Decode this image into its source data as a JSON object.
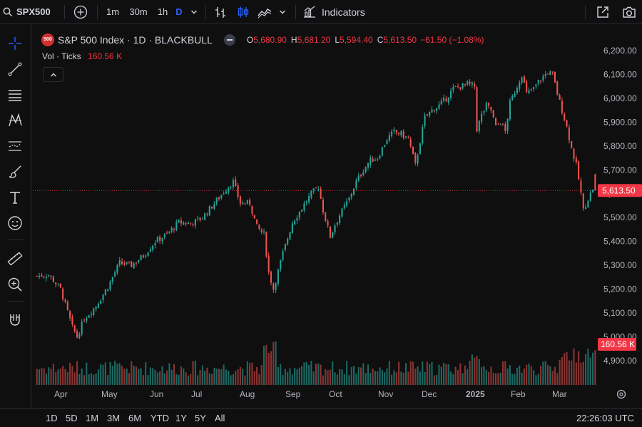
{
  "toolbar": {
    "symbol": "SPX500",
    "intervals": [
      "1m",
      "30m",
      "1h",
      "D"
    ],
    "indicators_label": "Indicators"
  },
  "legend": {
    "badge": "500",
    "title": "S&P 500 Index · 1D · BLACKBULL",
    "o_label": "O",
    "o_value": "5,680.90",
    "h_label": "H",
    "h_value": "5,681.20",
    "l_label": "L",
    "l_value": "5,594.40",
    "c_label": "C",
    "c_value": "5,613.50",
    "change": "−61.50 (−1.08%)",
    "vol_label": "Vol · Ticks",
    "vol_value": "160.56 K"
  },
  "price_axis": {
    "ticks": [
      "6,200.00",
      "6,100.00",
      "6,000.00",
      "5,900.00",
      "5,800.00",
      "5,700.00",
      "5,600.00",
      "5,500.00",
      "5,400.00",
      "5,300.00",
      "5,200.00",
      "5,100.00",
      "5,000.00",
      "4,900.00"
    ],
    "last_price": "5,613.50",
    "last_volume": "160.56 K"
  },
  "time_axis": {
    "labels": [
      "Apr",
      "May",
      "Jun",
      "Jul",
      "Aug",
      "Sep",
      "Oct",
      "Nov",
      "Dec",
      "2025",
      "Feb",
      "Mar"
    ]
  },
  "bottom_bar": {
    "ranges": [
      "1D",
      "5D",
      "1M",
      "3M",
      "6M",
      "YTD",
      "1Y",
      "5Y",
      "All"
    ],
    "clock": "22:26:03 UTC"
  },
  "colors": {
    "up": "#26a69a",
    "down": "#ef5350",
    "accent": "#2962ff",
    "last_price_bg": "#f23645"
  },
  "chart_data": {
    "type": "candlestick",
    "symbol": "S&P 500 Index",
    "interval": "1D",
    "ylim": [
      4850,
      6230
    ],
    "x_start_date": "2024-03-28",
    "series_description": "daily closing path (approx)",
    "waypoints": [
      [
        0,
        5255
      ],
      [
        5,
        5260
      ],
      [
        10,
        5200
      ],
      [
        15,
        5040
      ],
      [
        17,
        5000
      ],
      [
        20,
        5075
      ],
      [
        25,
        5130
      ],
      [
        30,
        5210
      ],
      [
        35,
        5310
      ],
      [
        40,
        5300
      ],
      [
        45,
        5340
      ],
      [
        50,
        5400
      ],
      [
        55,
        5430
      ],
      [
        60,
        5480
      ],
      [
        65,
        5475
      ],
      [
        70,
        5500
      ],
      [
        75,
        5560
      ],
      [
        80,
        5620
      ],
      [
        83,
        5650
      ],
      [
        86,
        5560
      ],
      [
        90,
        5560
      ],
      [
        93,
        5460
      ],
      [
        96,
        5430
      ],
      [
        98,
        5270
      ],
      [
        100,
        5200
      ],
      [
        104,
        5350
      ],
      [
        108,
        5480
      ],
      [
        112,
        5540
      ],
      [
        116,
        5600
      ],
      [
        119,
        5630
      ],
      [
        121,
        5530
      ],
      [
        124,
        5420
      ],
      [
        126,
        5470
      ],
      [
        128,
        5510
      ],
      [
        132,
        5580
      ],
      [
        135,
        5650
      ],
      [
        138,
        5700
      ],
      [
        141,
        5740
      ],
      [
        144,
        5750
      ],
      [
        148,
        5830
      ],
      [
        151,
        5860
      ],
      [
        154,
        5850
      ],
      [
        157,
        5830
      ],
      [
        160,
        5720
      ],
      [
        162,
        5820
      ],
      [
        164,
        5920
      ],
      [
        167,
        5950
      ],
      [
        170,
        5970
      ],
      [
        173,
        6000
      ],
      [
        176,
        6040
      ],
      [
        179,
        6050
      ],
      [
        182,
        6060
      ],
      [
        185,
        6050
      ],
      [
        186,
        5870
      ],
      [
        188,
        5930
      ],
      [
        190,
        5970
      ],
      [
        192,
        5950
      ],
      [
        194,
        5880
      ],
      [
        196,
        5900
      ],
      [
        198,
        5860
      ],
      [
        200,
        5980
      ],
      [
        203,
        6050
      ],
      [
        205,
        6100
      ],
      [
        207,
        6020
      ],
      [
        210,
        6040
      ],
      [
        212,
        6070
      ],
      [
        214,
        6090
      ],
      [
        216,
        6110
      ],
      [
        218,
        6100
      ],
      [
        220,
        6020
      ],
      [
        222,
        5950
      ],
      [
        224,
        5880
      ],
      [
        226,
        5790
      ],
      [
        228,
        5720
      ],
      [
        230,
        5600
      ],
      [
        231,
        5530
      ],
      [
        233,
        5580
      ],
      [
        235,
        5620
      ],
      [
        236,
        5613
      ]
    ],
    "volume_max": 260000,
    "last_volume": 160560
  }
}
